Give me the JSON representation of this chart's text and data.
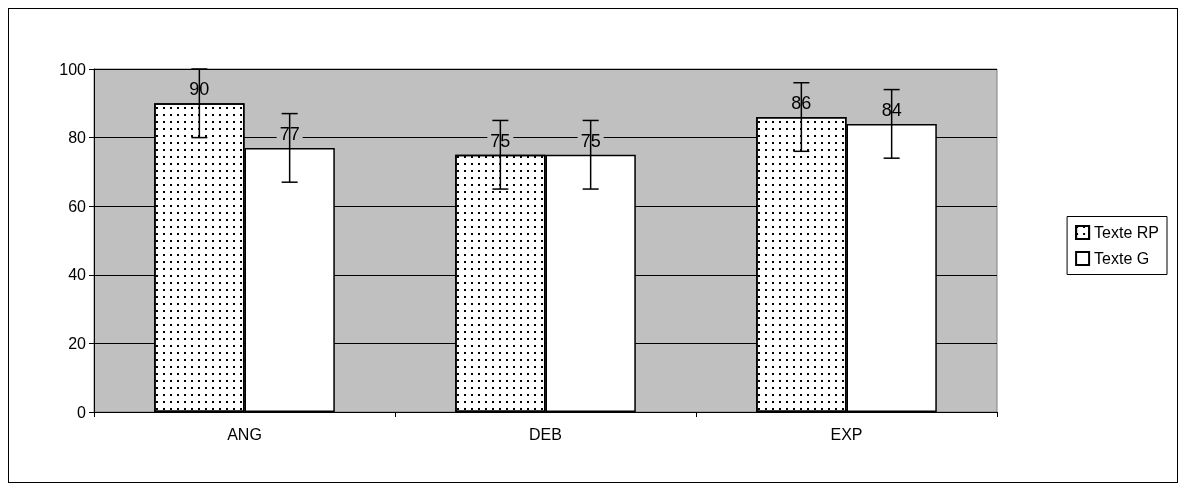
{
  "chart_data": {
    "type": "bar",
    "categories": [
      "ANG",
      "DEB",
      "EXP"
    ],
    "series": [
      {
        "name": "Texte RP",
        "color": "#ffffff",
        "values": [
          90,
          75,
          86
        ],
        "errors": [
          10,
          10,
          10
        ]
      },
      {
        "name": "Texte G",
        "color": "#ffffff",
        "values": [
          77,
          75,
          84
        ],
        "errors": [
          10,
          10,
          10
        ]
      }
    ],
    "ylim": [
      0,
      100
    ],
    "yticks": [
      0,
      20,
      40,
      60,
      80,
      100
    ],
    "grid": "y",
    "legend": "right",
    "data_labels": true
  }
}
